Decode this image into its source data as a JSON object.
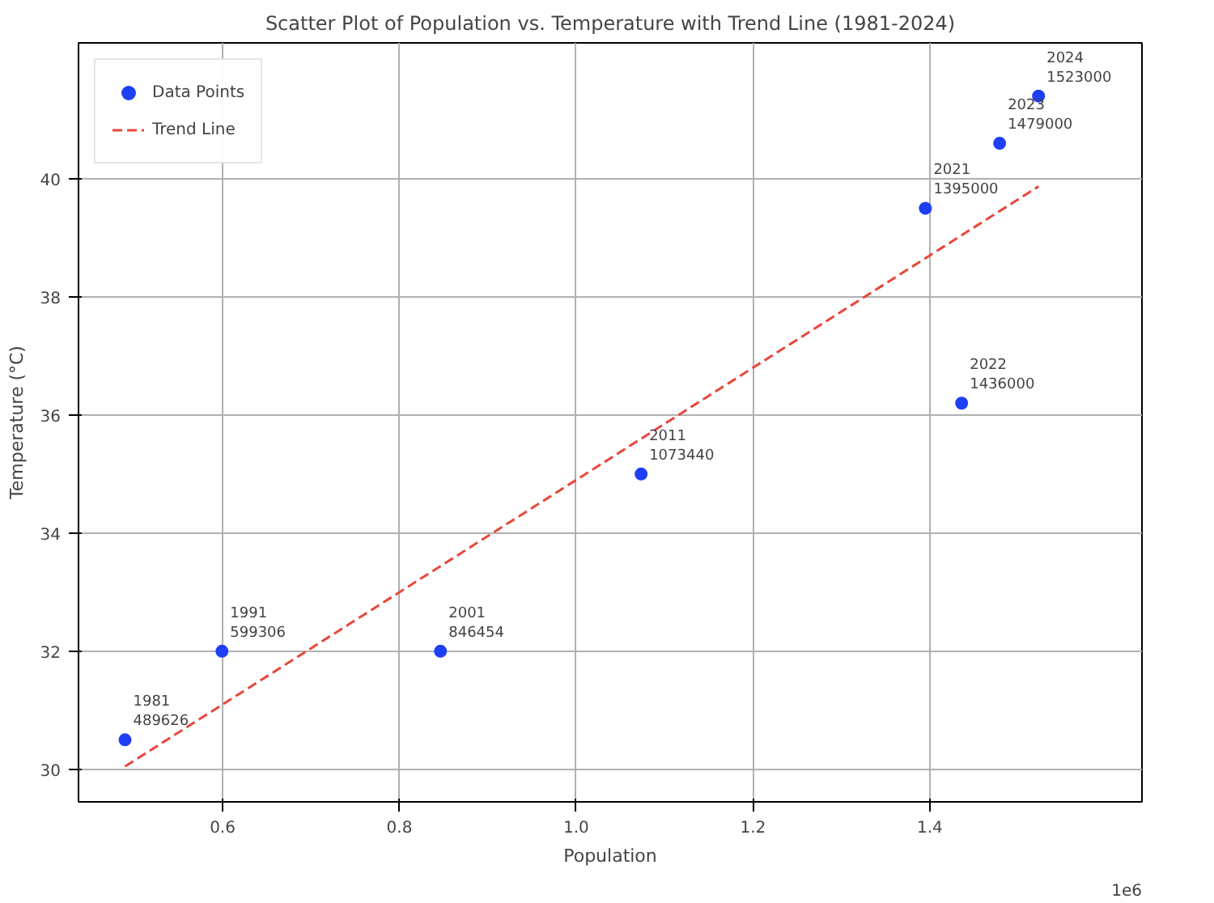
{
  "chart_data": {
    "type": "scatter",
    "title": "Scatter Plot of Population vs. Temperature with Trend Line (1981-2024)",
    "xlabel": "Population",
    "ylabel": "Temperature (°C)",
    "xlim": [
      0.437,
      1.64
    ],
    "ylim": [
      29.45,
      42.3
    ],
    "xticks": [
      0.6,
      0.8,
      {
        "value": 1.0,
        "label": "1.0"
      },
      1.2,
      1.4
    ],
    "yticks": [
      30,
      32,
      34,
      36,
      38,
      40
    ],
    "grid": true,
    "legend": "top left",
    "series": [
      {
        "name": "Data Points",
        "marker": "circle",
        "color": "#1f3ff5",
        "x": [
          0.489626,
          0.599306,
          0.846454,
          1.07344,
          1.395,
          1.436,
          1.479,
          1.523
        ],
        "values": [
          30.5,
          32.0,
          32.0,
          35.0,
          39.5,
          36.2,
          40.6,
          41.4
        ]
      },
      {
        "name": "Trend Line",
        "type": "line",
        "line_style": "dashed",
        "color": "#e8473a",
        "x": [
          0.489626,
          1.523
        ],
        "values": [
          30.05,
          39.87
        ]
      }
    ],
    "annotations": [
      {
        "text": "1981\n489626",
        "x": 0.489626,
        "y": 30.5
      },
      {
        "text": "1991\n599306",
        "x": 0.599306,
        "y": 32.0
      },
      {
        "text": "2001\n846454",
        "x": 0.846454,
        "y": 32.0
      },
      {
        "text": "2011\n1073440",
        "x": 1.07344,
        "y": 35.0
      },
      {
        "text": "2021\n1395000",
        "x": 1.395,
        "y": 39.5
      },
      {
        "text": "2022\n1436000",
        "x": 1.436,
        "y": 36.2
      },
      {
        "text": "2023\n1479000",
        "x": 1.479,
        "y": 40.6
      },
      {
        "text": "2024\n1523000",
        "x": 1.523,
        "y": 41.4
      },
      "1e6"
    ]
  }
}
